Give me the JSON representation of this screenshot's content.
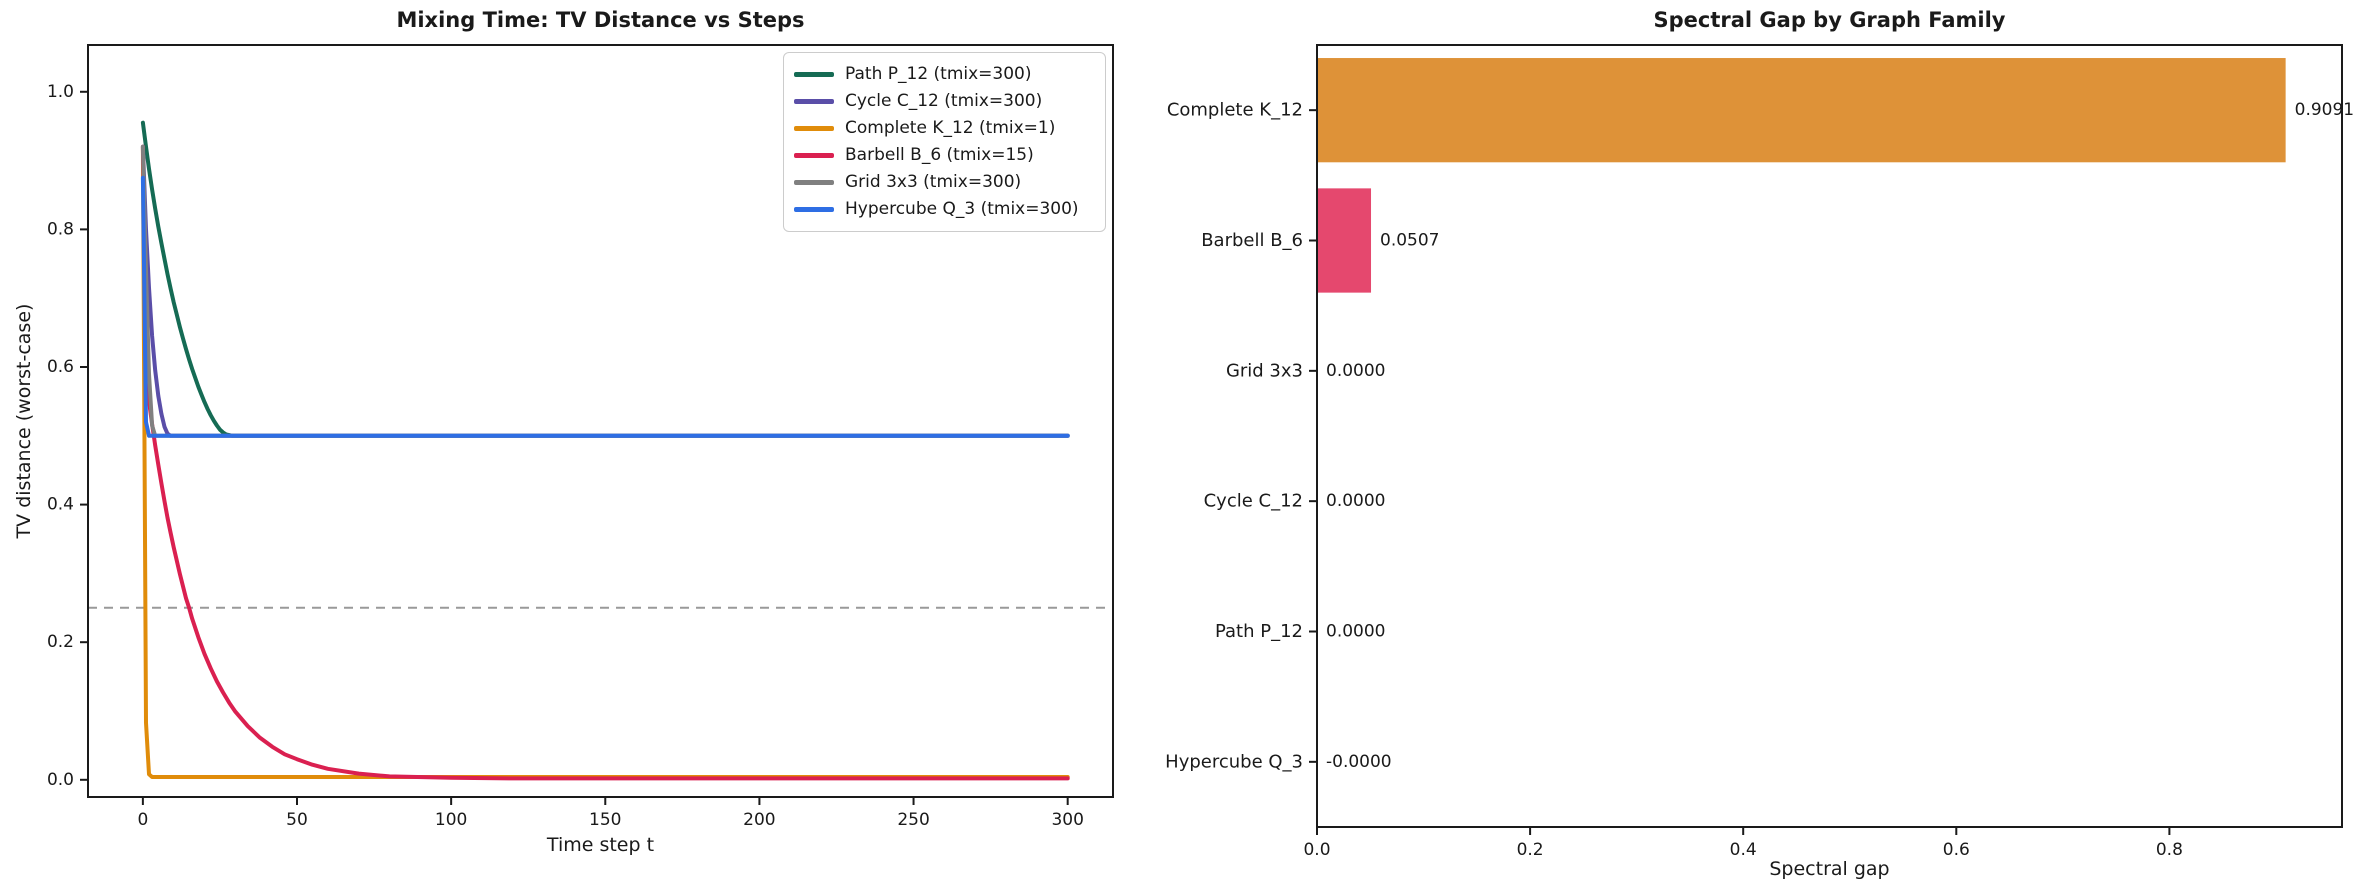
{
  "figure": {
    "background": "#ffffff",
    "text_color": "#1a1a1a",
    "axis_color": "#1a1a1a"
  },
  "chart_data": [
    {
      "type": "line",
      "title": "Mixing Time: TV Distance vs Steps",
      "xlabel": "Time step t",
      "ylabel": "TV distance (worst-case)",
      "xlim": [
        -17.8,
        314.7
      ],
      "ylim": [
        -0.025,
        1.068
      ],
      "xticks": [
        0,
        50,
        100,
        150,
        200,
        250,
        300
      ],
      "xtick_labels": [
        "0",
        "50",
        "100",
        "150",
        "200",
        "250",
        "300"
      ],
      "yticks": [
        0.0,
        0.2,
        0.4,
        0.6,
        0.8,
        1.0
      ],
      "ytick_labels": [
        "0.0",
        "0.2",
        "0.4",
        "0.6",
        "0.8",
        "1.0"
      ],
      "grid": false,
      "legend_position": "upper right",
      "threshold_line": {
        "y": 0.25,
        "color": "#999999",
        "style": "dashed"
      },
      "series": [
        {
          "name": "Path P_12 (tmix=300)",
          "color": "#156b54",
          "points": [
            [
              0,
              0.955
            ],
            [
              1,
              0.92
            ],
            [
              2,
              0.888
            ],
            [
              3,
              0.858
            ],
            [
              4,
              0.83
            ],
            [
              5,
              0.804
            ],
            [
              6,
              0.78
            ],
            [
              7,
              0.757
            ],
            [
              8,
              0.735
            ],
            [
              9,
              0.714
            ],
            [
              10,
              0.694
            ],
            [
              11,
              0.676
            ],
            [
              12,
              0.658
            ],
            [
              13,
              0.642
            ],
            [
              14,
              0.626
            ],
            [
              15,
              0.611
            ],
            [
              16,
              0.597
            ],
            [
              17,
              0.584
            ],
            [
              18,
              0.571
            ],
            [
              19,
              0.56
            ],
            [
              20,
              0.549
            ],
            [
              21,
              0.539
            ],
            [
              22,
              0.53
            ],
            [
              23,
              0.522
            ],
            [
              24,
              0.515
            ],
            [
              25,
              0.509
            ],
            [
              26,
              0.505
            ],
            [
              27,
              0.502
            ],
            [
              28,
              0.501
            ],
            [
              29,
              0.5
            ],
            [
              33,
              0.5
            ],
            [
              300,
              0.5
            ]
          ]
        },
        {
          "name": "Cycle C_12 (tmix=300)",
          "color": "#5a4ea8",
          "points": [
            [
              0,
              0.92
            ],
            [
              1,
              0.8
            ],
            [
              2,
              0.715
            ],
            [
              3,
              0.645
            ],
            [
              4,
              0.595
            ],
            [
              5,
              0.558
            ],
            [
              6,
              0.532
            ],
            [
              7,
              0.513
            ],
            [
              8,
              0.503
            ],
            [
              9,
              0.5
            ],
            [
              300,
              0.5
            ]
          ]
        },
        {
          "name": "Complete K_12 (tmix=1)",
          "color": "#e08c0a",
          "points": [
            [
              0,
              0.917
            ],
            [
              1,
              0.083
            ],
            [
              2,
              0.008
            ],
            [
              3,
              0.004
            ],
            [
              300,
              0.004
            ]
          ]
        },
        {
          "name": "Barbell B_6 (tmix=15)",
          "color": "#da2050",
          "points": [
            [
              0,
              0.92
            ],
            [
              1,
              0.63
            ],
            [
              2,
              0.55
            ],
            [
              3,
              0.517
            ],
            [
              4,
              0.486
            ],
            [
              5,
              0.458
            ],
            [
              6,
              0.431
            ],
            [
              7,
              0.405
            ],
            [
              8,
              0.381
            ],
            [
              9,
              0.359
            ],
            [
              10,
              0.338
            ],
            [
              12,
              0.299
            ],
            [
              14,
              0.264
            ],
            [
              15,
              0.25
            ],
            [
              16,
              0.234
            ],
            [
              18,
              0.207
            ],
            [
              20,
              0.183
            ],
            [
              22,
              0.162
            ],
            [
              24,
              0.143
            ],
            [
              26,
              0.127
            ],
            [
              28,
              0.112
            ],
            [
              30,
              0.099
            ],
            [
              34,
              0.078
            ],
            [
              38,
              0.061
            ],
            [
              42,
              0.048
            ],
            [
              46,
              0.037
            ],
            [
              50,
              0.03
            ],
            [
              55,
              0.022
            ],
            [
              60,
              0.016
            ],
            [
              70,
              0.009
            ],
            [
              80,
              0.005
            ],
            [
              100,
              0.003
            ],
            [
              120,
              0.002
            ],
            [
              300,
              0.002
            ]
          ]
        },
        {
          "name": "Grid 3x3 (tmix=300)",
          "color": "#808080",
          "points": [
            [
              0,
              0.92
            ],
            [
              1,
              0.74
            ],
            [
              2,
              0.59
            ],
            [
              3,
              0.515
            ],
            [
              4,
              0.5
            ],
            [
              300,
              0.5
            ]
          ]
        },
        {
          "name": "Hypercube Q_3 (tmix=300)",
          "color": "#2e6ee4",
          "points": [
            [
              0,
              0.875
            ],
            [
              1,
              0.52
            ],
            [
              2,
              0.5
            ],
            [
              300,
              0.5
            ]
          ]
        }
      ]
    },
    {
      "type": "bar",
      "orientation": "horizontal",
      "title": "Spectral Gap by Graph Family",
      "xlabel": "Spectral gap",
      "categories": [
        "Complete K_12",
        "Barbell B_6",
        "Grid 3x3",
        "Cycle C_12",
        "Path P_12",
        "Hypercube Q_3"
      ],
      "values": [
        0.9091,
        0.0507,
        0,
        0,
        0,
        0
      ],
      "value_labels": [
        "0.9091",
        "0.0507",
        "0.0000",
        "0.0000",
        "0.0000",
        "-0.0000"
      ],
      "bar_colors": [
        "#de9238",
        "#e5486e",
        null,
        null,
        null,
        null
      ],
      "xlim": [
        0,
        0.962
      ],
      "xticks": [
        0.0,
        0.2,
        0.4,
        0.6,
        0.8
      ],
      "xtick_labels": [
        "0.0",
        "0.2",
        "0.4",
        "0.6",
        "0.8"
      ],
      "grid": false,
      "bar_height_fraction": 0.8
    }
  ]
}
